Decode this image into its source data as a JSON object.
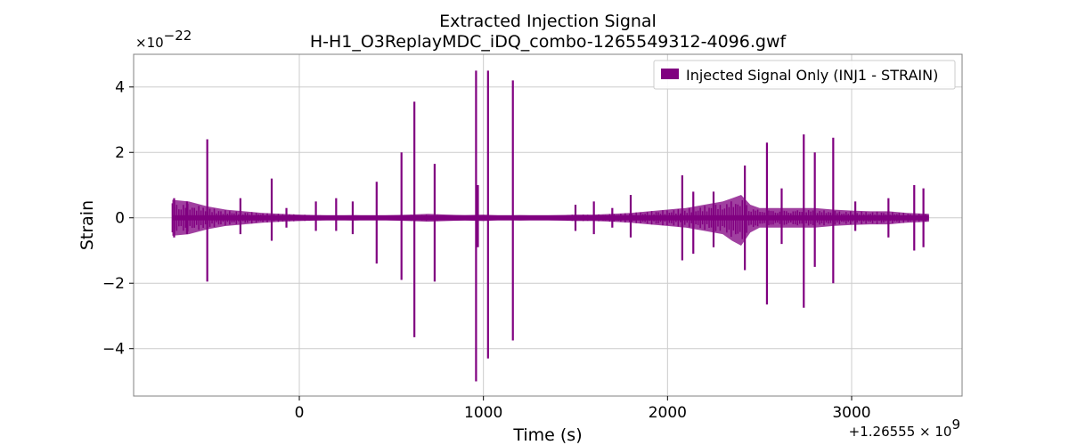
{
  "chart_data": {
    "type": "line",
    "title": "Extracted Injection Signal",
    "subtitle": "H-H1_O3ReplayMDC_iDQ_combo-1265549312-4096.gwf",
    "xlabel": "Time (s)",
    "ylabel": "Strain",
    "x_offset_label": "+1.26555 × 10",
    "x_offset_exp": "9",
    "y_multiplier_label": "×10",
    "y_multiplier_exp": "−22",
    "xlim": [
      -900,
      3600
    ],
    "ylim": [
      -5.45,
      5.0
    ],
    "xticks": [
      0,
      1000,
      2000,
      3000
    ],
    "xtick_labels": [
      "0",
      "1000",
      "2000",
      "3000"
    ],
    "yticks": [
      4,
      2,
      0,
      -2,
      -4
    ],
    "ytick_labels": [
      "4",
      "2",
      "0",
      "−2",
      "−4"
    ],
    "grid": true,
    "legend_position": "top-right",
    "series": [
      {
        "name": "Injected Signal Only (INJ1 - STRAIN)",
        "color": "#800080",
        "x_range": [
          -690,
          3420
        ],
        "background_band": [
          -0.08,
          0.08
        ],
        "envelope_x": [
          -690,
          -600,
          -500,
          -400,
          -300,
          -200,
          -100,
          0,
          100,
          200,
          300,
          400,
          500,
          600,
          700,
          800,
          900,
          1000,
          1100,
          1200,
          1300,
          1400,
          1500,
          1600,
          1700,
          1800,
          1900,
          2000,
          2100,
          2200,
          2300,
          2350,
          2400,
          2450,
          2500,
          2600,
          2700,
          2800,
          2900,
          3000,
          3100,
          3200,
          3300,
          3420
        ],
        "envelope_upper": [
          0.55,
          0.5,
          0.35,
          0.25,
          0.2,
          0.15,
          0.12,
          0.1,
          0.08,
          0.07,
          0.08,
          0.06,
          0.08,
          0.1,
          0.12,
          0.1,
          0.08,
          0.1,
          0.07,
          0.08,
          0.07,
          0.08,
          0.1,
          0.1,
          0.12,
          0.15,
          0.2,
          0.25,
          0.3,
          0.4,
          0.5,
          0.6,
          0.7,
          0.4,
          0.3,
          0.3,
          0.3,
          0.3,
          0.25,
          0.22,
          0.2,
          0.2,
          0.15,
          0.12
        ],
        "envelope_lower": [
          -0.55,
          -0.5,
          -0.35,
          -0.25,
          -0.2,
          -0.15,
          -0.12,
          -0.1,
          -0.08,
          -0.07,
          -0.08,
          -0.06,
          -0.08,
          -0.1,
          -0.12,
          -0.1,
          -0.08,
          -0.1,
          -0.07,
          -0.08,
          -0.07,
          -0.08,
          -0.1,
          -0.1,
          -0.12,
          -0.15,
          -0.2,
          -0.25,
          -0.3,
          -0.4,
          -0.5,
          -0.7,
          -0.85,
          -0.45,
          -0.3,
          -0.3,
          -0.3,
          -0.3,
          -0.25,
          -0.22,
          -0.2,
          -0.2,
          -0.15,
          -0.12
        ],
        "spikes": [
          {
            "x": -680,
            "top": 0.6,
            "bottom": -0.6
          },
          {
            "x": -610,
            "top": 0.5,
            "bottom": -0.5
          },
          {
            "x": -500,
            "top": 2.4,
            "bottom": -1.95
          },
          {
            "x": -320,
            "top": 0.6,
            "bottom": -0.5
          },
          {
            "x": -150,
            "top": 1.2,
            "bottom": -0.7
          },
          {
            "x": -70,
            "top": 0.3,
            "bottom": -0.3
          },
          {
            "x": 90,
            "top": 0.5,
            "bottom": -0.4
          },
          {
            "x": 200,
            "top": 0.6,
            "bottom": -0.4
          },
          {
            "x": 290,
            "top": 0.5,
            "bottom": -0.5
          },
          {
            "x": 420,
            "top": 1.1,
            "bottom": -1.4
          },
          {
            "x": 555,
            "top": 2.0,
            "bottom": -1.9
          },
          {
            "x": 625,
            "top": 3.55,
            "bottom": -3.65
          },
          {
            "x": 735,
            "top": 1.65,
            "bottom": -1.95
          },
          {
            "x": 960,
            "top": 4.5,
            "bottom": -5.0
          },
          {
            "x": 970,
            "top": 1.0,
            "bottom": -0.9
          },
          {
            "x": 1025,
            "top": 4.5,
            "bottom": -4.3
          },
          {
            "x": 1160,
            "top": 4.2,
            "bottom": -3.75
          },
          {
            "x": 1500,
            "top": 0.4,
            "bottom": -0.4
          },
          {
            "x": 1600,
            "top": 0.5,
            "bottom": -0.5
          },
          {
            "x": 1700,
            "top": 0.3,
            "bottom": -0.3
          },
          {
            "x": 1800,
            "top": 0.7,
            "bottom": -0.6
          },
          {
            "x": 2080,
            "top": 1.3,
            "bottom": -1.3
          },
          {
            "x": 2140,
            "top": 0.8,
            "bottom": -1.1
          },
          {
            "x": 2250,
            "top": 0.8,
            "bottom": -0.9
          },
          {
            "x": 2420,
            "top": 1.6,
            "bottom": -1.6
          },
          {
            "x": 2540,
            "top": 2.3,
            "bottom": -2.65
          },
          {
            "x": 2620,
            "top": 0.9,
            "bottom": -0.8
          },
          {
            "x": 2740,
            "top": 2.55,
            "bottom": -2.75
          },
          {
            "x": 2800,
            "top": 2.0,
            "bottom": -1.5
          },
          {
            "x": 2900,
            "top": 2.45,
            "bottom": -2.0
          },
          {
            "x": 3020,
            "top": 0.5,
            "bottom": -0.4
          },
          {
            "x": 3200,
            "top": 0.6,
            "bottom": -0.6
          },
          {
            "x": 3340,
            "top": 1.0,
            "bottom": -1.0
          },
          {
            "x": 3390,
            "top": 0.9,
            "bottom": -0.9
          }
        ]
      }
    ]
  }
}
